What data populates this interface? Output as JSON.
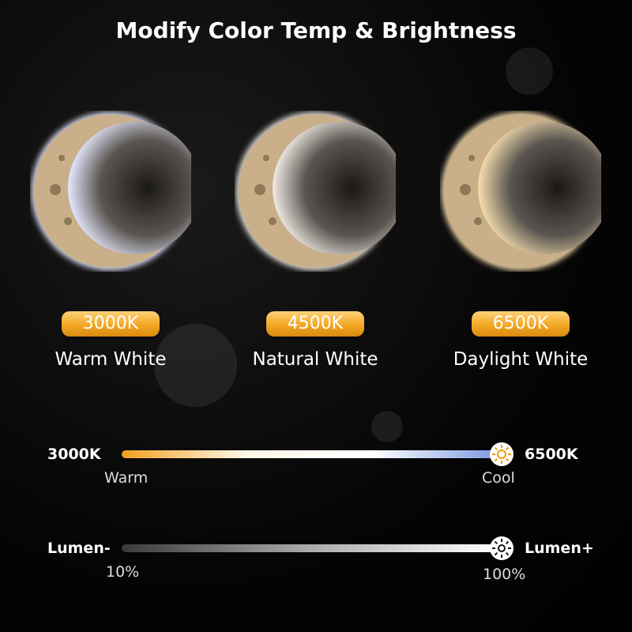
{
  "title": "Modify Color Temp & Brightness",
  "modes": [
    {
      "temp": "3000K",
      "name": "Warm White",
      "glow": "#e6e8ff"
    },
    {
      "temp": "4500K",
      "name": "Natural White",
      "glow": "#f1ebe4"
    },
    {
      "temp": "6500K",
      "name": "Daylight White",
      "glow": "#f6dfae"
    }
  ],
  "color_slider": {
    "min_label": "3000K",
    "max_label": "6500K",
    "min_sub": "Warm",
    "max_sub": "Cool",
    "value": 1.0,
    "knob_icon": "sun-icon",
    "colors": [
      "#f0a020",
      "#fff8e8",
      "#ffffff",
      "#7f9ce0"
    ]
  },
  "brightness_slider": {
    "min_label": "Lumen-",
    "max_label": "Lumen+",
    "min_sub": "10%",
    "max_sub": "100%",
    "value": 1.0,
    "knob_icon": "brightness-icon"
  }
}
